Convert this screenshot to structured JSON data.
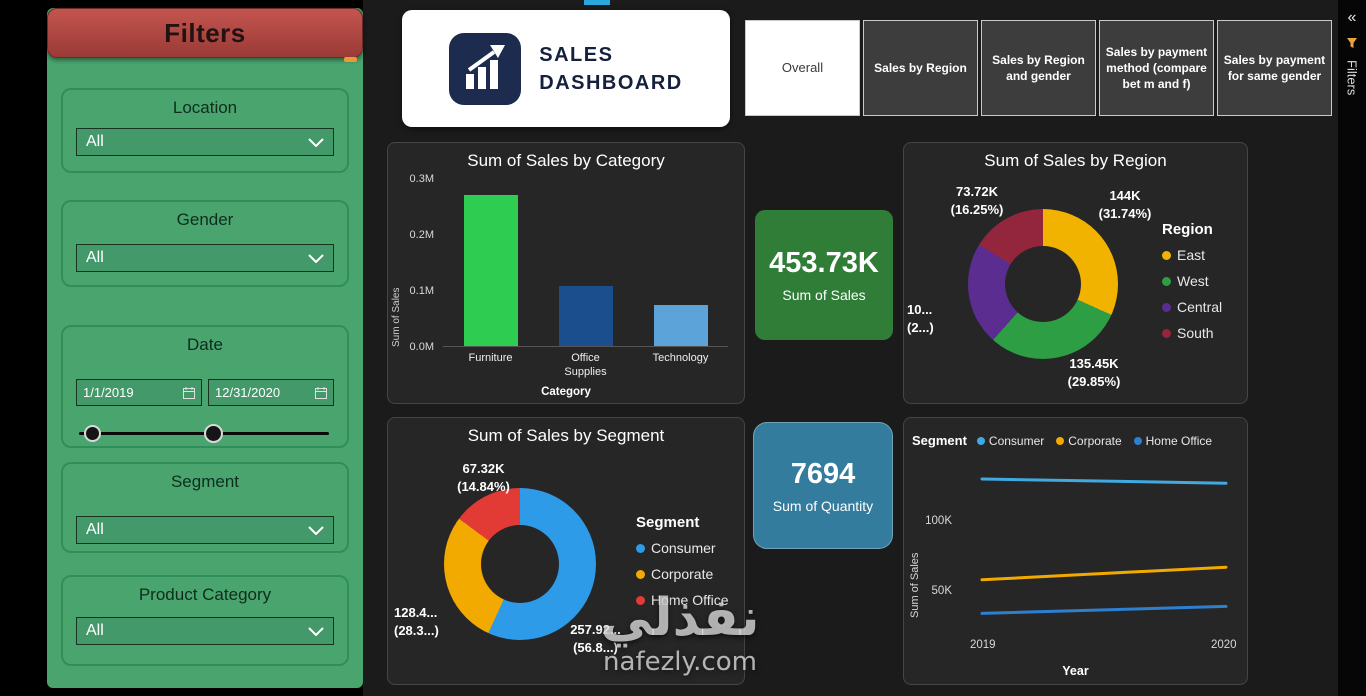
{
  "window": {
    "watermark": {
      "arabic": "نفذلي",
      "domain": "nafezly.com"
    }
  },
  "filters_panel": {
    "title": "Filters",
    "location": {
      "label": "Location",
      "value": "All"
    },
    "gender": {
      "label": "Gender",
      "value": "All"
    },
    "date": {
      "label": "Date",
      "start_value": "1/1/2019",
      "end_value": "12/31/2020"
    },
    "segment": {
      "label": "Segment",
      "value": "All"
    },
    "product_category": {
      "label": "Product Category",
      "value": "All"
    }
  },
  "logo": {
    "line1": "SALES",
    "line2": "DASHBOARD"
  },
  "nav_tabs": [
    {
      "label": "Overall",
      "active": true
    },
    {
      "label": "Sales by Region",
      "active": false
    },
    {
      "label": "Sales by Region and gender",
      "active": false
    },
    {
      "label": "Sales by payment method (compare bet m and f)",
      "active": false
    },
    {
      "label": "Sales by payment for same gender",
      "active": false
    }
  ],
  "right_rail": {
    "collapse_icon": "«",
    "label": "Filters"
  },
  "kpi_cards": [
    {
      "value": "453.73K",
      "label": "Sum of Sales",
      "color": "#2F7D36"
    },
    {
      "value": "7694",
      "label": "Sum of Quantity",
      "color": "#337C9E"
    }
  ],
  "chart_data": [
    {
      "id": "sales_by_category",
      "type": "bar",
      "title": "Sum of Sales by Category",
      "categories": [
        "Furniture",
        "Office Supplies",
        "Technology"
      ],
      "values": [
        272000,
        107000,
        74000
      ],
      "colors": [
        "#2FCC52",
        "#1A4E8C",
        "#5BA3D9"
      ],
      "xlabel": "Category",
      "ylabel": "Sum of Sales",
      "yticks": [
        "0.3M",
        "0.2M",
        "0.1M",
        "0.0M"
      ],
      "ylim": [
        0,
        300000
      ],
      "grid": false
    },
    {
      "id": "sales_by_region",
      "type": "pie",
      "title": "Sum of Sales by Region",
      "legend_title": "Region",
      "legend_position": "right",
      "slices": [
        {
          "name": "East",
          "value": 144000,
          "pct": 31.74,
          "color": "#F2B200",
          "value_label": "144K",
          "pct_label": "(31.74%)"
        },
        {
          "name": "West",
          "value": 135450,
          "pct": 29.85,
          "color": "#2E9E44",
          "value_label": "135.45K",
          "pct_label": "(29.85%)"
        },
        {
          "name": "Central",
          "value": 100560,
          "pct": 22.16,
          "color": "#5C2D91",
          "value_label": "10...",
          "pct_label": "(2...)"
        },
        {
          "name": "South",
          "value": 73720,
          "pct": 16.25,
          "color": "#93253C",
          "value_label": "73.72K",
          "pct_label": "(16.25%)"
        }
      ]
    },
    {
      "id": "sales_by_segment",
      "type": "pie",
      "title": "Sum of Sales by Segment",
      "legend_title": "Segment",
      "legend_position": "right",
      "slices": [
        {
          "name": "Consumer",
          "value": 257920,
          "pct": 56.85,
          "color": "#2D9BE8",
          "value_label": "257.92...",
          "pct_label": "(56.8...)"
        },
        {
          "name": "Corporate",
          "value": 128400,
          "pct": 28.31,
          "color": "#F2A900",
          "value_label": "128.4...",
          "pct_label": "(28.3...)"
        },
        {
          "name": "Home Office",
          "value": 67320,
          "pct": 14.84,
          "color": "#E23B36",
          "value_label": "67.32K",
          "pct_label": "(14.84%)"
        }
      ]
    },
    {
      "id": "sales_by_segment_year",
      "type": "line",
      "legend_title": "Segment",
      "legend_position": "top",
      "x": [
        2019,
        2020
      ],
      "xlabel": "Year",
      "ylabel": "Sum of Sales",
      "yticks": [
        "100K",
        "50K"
      ],
      "ylim": [
        20000,
        145000
      ],
      "grid": false,
      "series": [
        {
          "name": "Consumer",
          "color": "#3FA9E0",
          "values": [
            130000,
            127000
          ]
        },
        {
          "name": "Corporate",
          "color": "#F2A900",
          "values": [
            58000,
            67000
          ]
        },
        {
          "name": "Home Office",
          "color": "#2D7FD0",
          "values": [
            34000,
            39000
          ]
        }
      ]
    }
  ]
}
